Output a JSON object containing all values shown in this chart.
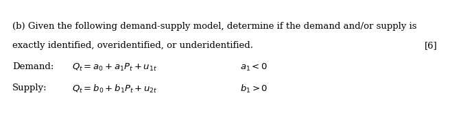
{
  "bg_color": "#ffffff",
  "line1": "(b) Given the following demand-supply model, determine if the demand and/or supply is",
  "line2": "exactly identified, overidentified, or underidentified.",
  "mark": "[6]",
  "demand_label": "Demand:",
  "demand_eq": "$Q_t = a_0 + a_1P_t + u_{1t}$",
  "demand_cond": "$a_1 < 0$",
  "supply_label": "Supply:",
  "supply_eq": "$Q_t = b_0 + b_1P_t + u_{2t}$",
  "supply_cond": "$b_1 > 0$",
  "font_size": 9.5,
  "fig_width": 6.56,
  "fig_height": 1.87,
  "dpi": 100
}
